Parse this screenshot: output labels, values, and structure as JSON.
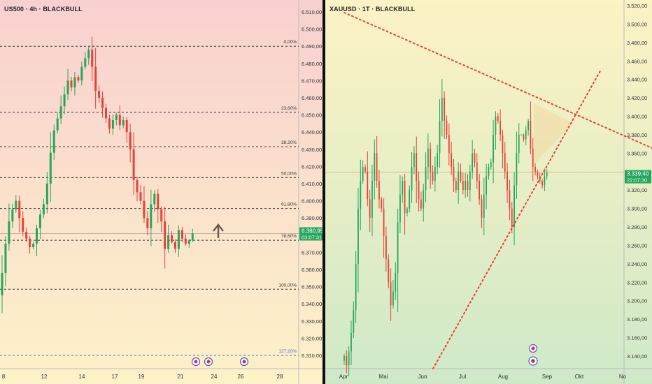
{
  "left_chart": {
    "title": "US500 · 4h · BLACKBULL",
    "price_axis": [
      "6.510,00",
      "6.500,00",
      "6.490,00",
      "6.480,00",
      "6.470,00",
      "6.460,00",
      "6.450,00",
      "6.440,00",
      "6.430,00",
      "6.420,00",
      "6.410,00",
      "6.400,00",
      "6.390,00",
      "6.380,00",
      "6.370,00",
      "6.360,00",
      "6.350,00",
      "6.340,00",
      "6.330,00",
      "6.320,00",
      "6.310,00"
    ],
    "time_axis": [
      "8",
      "12",
      "14",
      "17",
      "19",
      "21",
      "24",
      "26",
      "28"
    ],
    "fib_levels": [
      {
        "label": "0,00%",
        "price": 6490.0
      },
      {
        "label": "23,60%",
        "price": 6451.5
      },
      {
        "label": "38,20%",
        "price": 6431.5
      },
      {
        "label": "50,00%",
        "price": 6413.5
      },
      {
        "label": "61,80%",
        "price": 6395.5
      },
      {
        "label": "78,60%",
        "price": 6377.0
      },
      {
        "label": "100,00%",
        "price": 6348.5
      },
      {
        "label": "127,20%",
        "price": 6310.0
      }
    ],
    "last_price": "6.380,95",
    "countdown": "03:07:31",
    "arrow": "up-arrow",
    "colors": {
      "bull": "#26a65b",
      "bear": "#e8413b",
      "fib": "#333333",
      "price_tag": "#26a65b",
      "bg_top": "#f9d0d0",
      "bg_bottom": "#fdf2c8"
    }
  },
  "right_chart": {
    "title": "XAUUSD · 1T · BLACKBULL",
    "price_axis": [
      "3.520,00",
      "3.500,00",
      "3.480,00",
      "3.460,00",
      "3.440,00",
      "3.420,00",
      "3.400,00",
      "3.380,00",
      "3.360,00",
      "3.340,00",
      "3.320,00",
      "3.300,00",
      "3.280,00",
      "3.260,00",
      "3.240,00",
      "3.220,00",
      "3.200,00",
      "3.180,00",
      "3.160,00",
      "3.140,00"
    ],
    "time_axis": [
      "Apr",
      "Mai",
      "Jun",
      "Jul",
      "Aug",
      "Sep",
      "Okt",
      "No"
    ],
    "last_price": "3.339,40",
    "countdown": "22:07:30",
    "colors": {
      "bull": "#26a65b",
      "bear": "#e8413b",
      "trendline": "#e8413b",
      "price_tag": "#26a65b",
      "bg_top": "#fdf3c4",
      "bg_bottom": "#cfe9c8"
    }
  },
  "chart_data": [
    {
      "type": "candlestick",
      "title": "US500 · 4h · BLACKBULL",
      "xlabel": "",
      "ylabel": "",
      "ylim": [
        6306,
        6515
      ],
      "x_ticks": [
        "8",
        "12",
        "14",
        "17",
        "19",
        "21",
        "24",
        "26",
        "28"
      ],
      "annotations": [
        "0,00%",
        "23,60%",
        "38,20%",
        "50,00%",
        "61,80%",
        "78,60%",
        "100,00%",
        "127,20%"
      ],
      "last_value": 6380.95,
      "close_path": [
        6345,
        6358,
        6375,
        6388,
        6395,
        6400,
        6390,
        6382,
        6378,
        6373,
        6375,
        6384,
        6392,
        6398,
        6410,
        6428,
        6441,
        6448,
        6455,
        6462,
        6470,
        6466,
        6472,
        6470,
        6478,
        6483,
        6488,
        6478,
        6464,
        6460,
        6454,
        6448,
        6442,
        6447,
        6450,
        6444,
        6447,
        6440,
        6430,
        6412,
        6405,
        6400,
        6390,
        6384,
        6398,
        6404,
        6395,
        6388,
        6372,
        6380,
        6376,
        6372,
        6383,
        6378,
        6375,
        6377,
        6381
      ]
    },
    {
      "type": "candlestick",
      "title": "XAUUSD · 1T · BLACKBULL",
      "xlabel": "",
      "ylabel": "",
      "ylim": [
        3128,
        3526
      ],
      "x_ticks": [
        "Apr",
        "Mai",
        "Jun",
        "Jul",
        "Aug",
        "Sep",
        "Okt",
        "No"
      ],
      "last_value": 3339.4,
      "trendlines": [
        {
          "name": "upper",
          "from": [
            0,
            3512
          ],
          "to": [
            92,
            3365
          ]
        },
        {
          "name": "lower",
          "from": [
            31,
            3128
          ],
          "to": [
            90,
            3454
          ]
        }
      ],
      "close_path": [
        3135,
        3140,
        3130,
        3145,
        3165,
        3190,
        3240,
        3300,
        3330,
        3345,
        3340,
        3310,
        3290,
        3330,
        3360,
        3330,
        3310,
        3300,
        3270,
        3245,
        3220,
        3195,
        3210,
        3230,
        3285,
        3315,
        3330,
        3295,
        3300,
        3320,
        3345,
        3360,
        3330,
        3310,
        3300,
        3320,
        3345,
        3365,
        3340,
        3330,
        3345,
        3360,
        3395,
        3420,
        3395,
        3380,
        3360,
        3345,
        3330,
        3320,
        3340,
        3330,
        3320,
        3330,
        3320,
        3340,
        3360,
        3350,
        3330,
        3310,
        3290,
        3315,
        3335,
        3345,
        3350,
        3380,
        3400,
        3395,
        3380,
        3360,
        3340,
        3320,
        3300,
        3280,
        3325,
        3360,
        3380,
        3380,
        3375,
        3385,
        3395,
        3365,
        3345,
        3340,
        3335,
        3330,
        3325,
        3335,
        3339
      ]
    }
  ]
}
